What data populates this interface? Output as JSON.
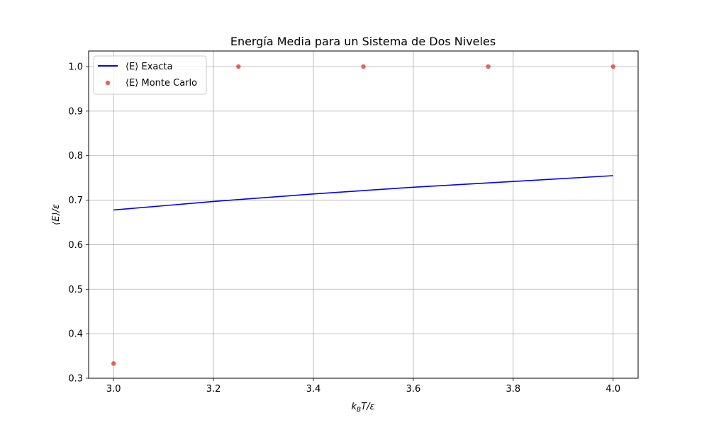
{
  "chart_data": {
    "type": "line",
    "title": "Energía Media para un Sistema de Dos Niveles",
    "xlabel": "k_BT/ε",
    "ylabel": "⟨E⟩/ε",
    "xlim": [
      2.95,
      4.05
    ],
    "ylim": [
      0.3,
      1.035
    ],
    "xticks": [
      3.0,
      3.2,
      3.4,
      3.6,
      3.8,
      4.0
    ],
    "yticks": [
      0.3,
      0.4,
      0.5,
      0.6,
      0.7,
      0.8,
      0.9,
      1.0
    ],
    "xtick_labels": [
      "3.0",
      "3.2",
      "3.4",
      "3.6",
      "3.8",
      "4.0"
    ],
    "ytick_labels": [
      "0.3",
      "0.4",
      "0.5",
      "0.6",
      "0.7",
      "0.8",
      "0.9",
      "1.0"
    ],
    "grid": true,
    "legend_position": "upper-left",
    "series": [
      {
        "name": "⟨E⟩ Exacta",
        "kind": "line",
        "color": "#0000ff",
        "x": [
          3.0,
          3.2,
          3.4,
          3.6,
          3.8,
          4.0
        ],
        "y": [
          0.678,
          0.697,
          0.714,
          0.729,
          0.742,
          0.755
        ]
      },
      {
        "name": "⟨E⟩ Monte Carlo",
        "kind": "scatter",
        "color": "#e8463c",
        "x": [
          3.0,
          3.25,
          3.5,
          3.75,
          4.0
        ],
        "y": [
          0.333,
          1.0,
          1.0,
          1.0,
          1.0
        ]
      }
    ]
  }
}
